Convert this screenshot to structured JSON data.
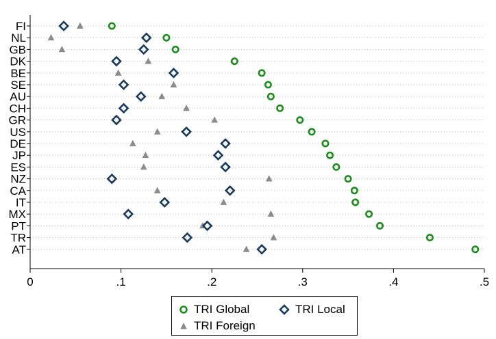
{
  "chart_data": {
    "type": "scatter",
    "orientation": "horizontal-dot-plot",
    "categories": [
      "FI",
      "NL",
      "GB",
      "DK",
      "BE",
      "SE",
      "AU",
      "CH",
      "GR",
      "US",
      "DE",
      "JP",
      "ES",
      "NZ",
      "CA",
      "IT",
      "MX",
      "PT",
      "TR",
      "AT"
    ],
    "series": [
      {
        "name": "TRI Global",
        "marker": "circle",
        "color": "#1e8c1e",
        "values": [
          0.09,
          0.15,
          0.16,
          0.225,
          0.255,
          0.262,
          0.265,
          0.275,
          0.297,
          0.31,
          0.325,
          0.33,
          0.337,
          0.35,
          0.357,
          0.358,
          0.373,
          0.385,
          0.44,
          0.49
        ]
      },
      {
        "name": "TRI Local",
        "marker": "diamond",
        "color": "#1a3a5c",
        "values": [
          0.037,
          0.128,
          0.125,
          0.095,
          0.158,
          0.103,
          0.122,
          0.103,
          0.095,
          0.172,
          0.215,
          0.207,
          0.215,
          0.09,
          0.22,
          0.148,
          0.108,
          0.195,
          0.173,
          0.255
        ]
      },
      {
        "name": "TRI Foreign",
        "marker": "triangle",
        "color": "#8c8c8c",
        "values": [
          0.055,
          0.023,
          0.035,
          0.13,
          0.097,
          0.158,
          0.145,
          0.172,
          0.203,
          0.14,
          0.113,
          0.127,
          0.125,
          0.263,
          0.14,
          0.213,
          0.265,
          0.19,
          0.268,
          0.238
        ]
      }
    ],
    "x_ticks": [
      "0",
      ".1",
      ".2",
      ".3",
      ".4",
      ".5"
    ],
    "x_tick_values": [
      0,
      0.1,
      0.2,
      0.3,
      0.4,
      0.5
    ],
    "xlim": [
      0,
      0.5
    ],
    "xlabel": "",
    "ylabel": "",
    "title": "",
    "grid": "dotted horizontal lines per category",
    "legend_position": "bottom"
  },
  "legend": {
    "global_label": "TRI Global",
    "local_label": "TRI Local",
    "foreign_label": "TRI Foreign"
  },
  "colors": {
    "global": "#1e8c1e",
    "local": "#1a3a5c",
    "foreign": "#8c8c8c",
    "grid": "#b8b8b8"
  }
}
